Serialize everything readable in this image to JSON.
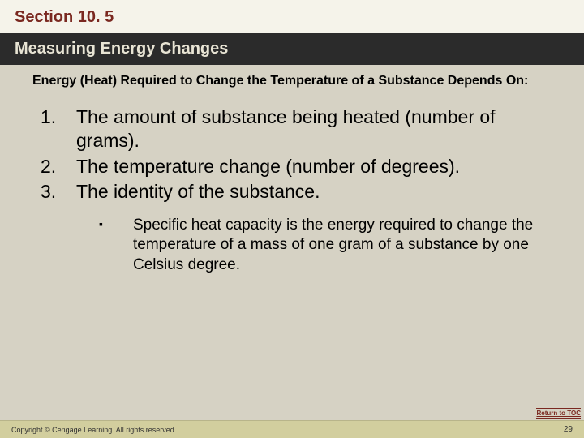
{
  "section": {
    "label": "Section 10. 5"
  },
  "title": {
    "text": "Measuring Energy Changes"
  },
  "subheading": {
    "text": "Energy (Heat) Required to Change the Temperature of a Substance Depends On:"
  },
  "list": {
    "items": [
      "The amount of substance being heated (number of grams).",
      "The temperature change (number of degrees).",
      "The identity of the substance."
    ],
    "sub_items": [
      "Specific heat capacity is the energy required to change the temperature of a mass of one gram of a substance by one Celsius degree."
    ]
  },
  "nav": {
    "toc": "Return to TOC"
  },
  "footer": {
    "copyright": "Copyright © Cengage Learning. All rights reserved",
    "page": "29"
  },
  "styles": {
    "bg_color": "#d6d2c4",
    "section_bg": "#f5f3ea",
    "section_color": "#7a2820",
    "title_bg": "#2b2b2b",
    "title_color": "#e8e4d4",
    "footer_bg": "#d2ce9e",
    "body_font_size": 23,
    "sub_font_size": 19,
    "heading_font_size": 20,
    "subheading_font_size": 16
  }
}
